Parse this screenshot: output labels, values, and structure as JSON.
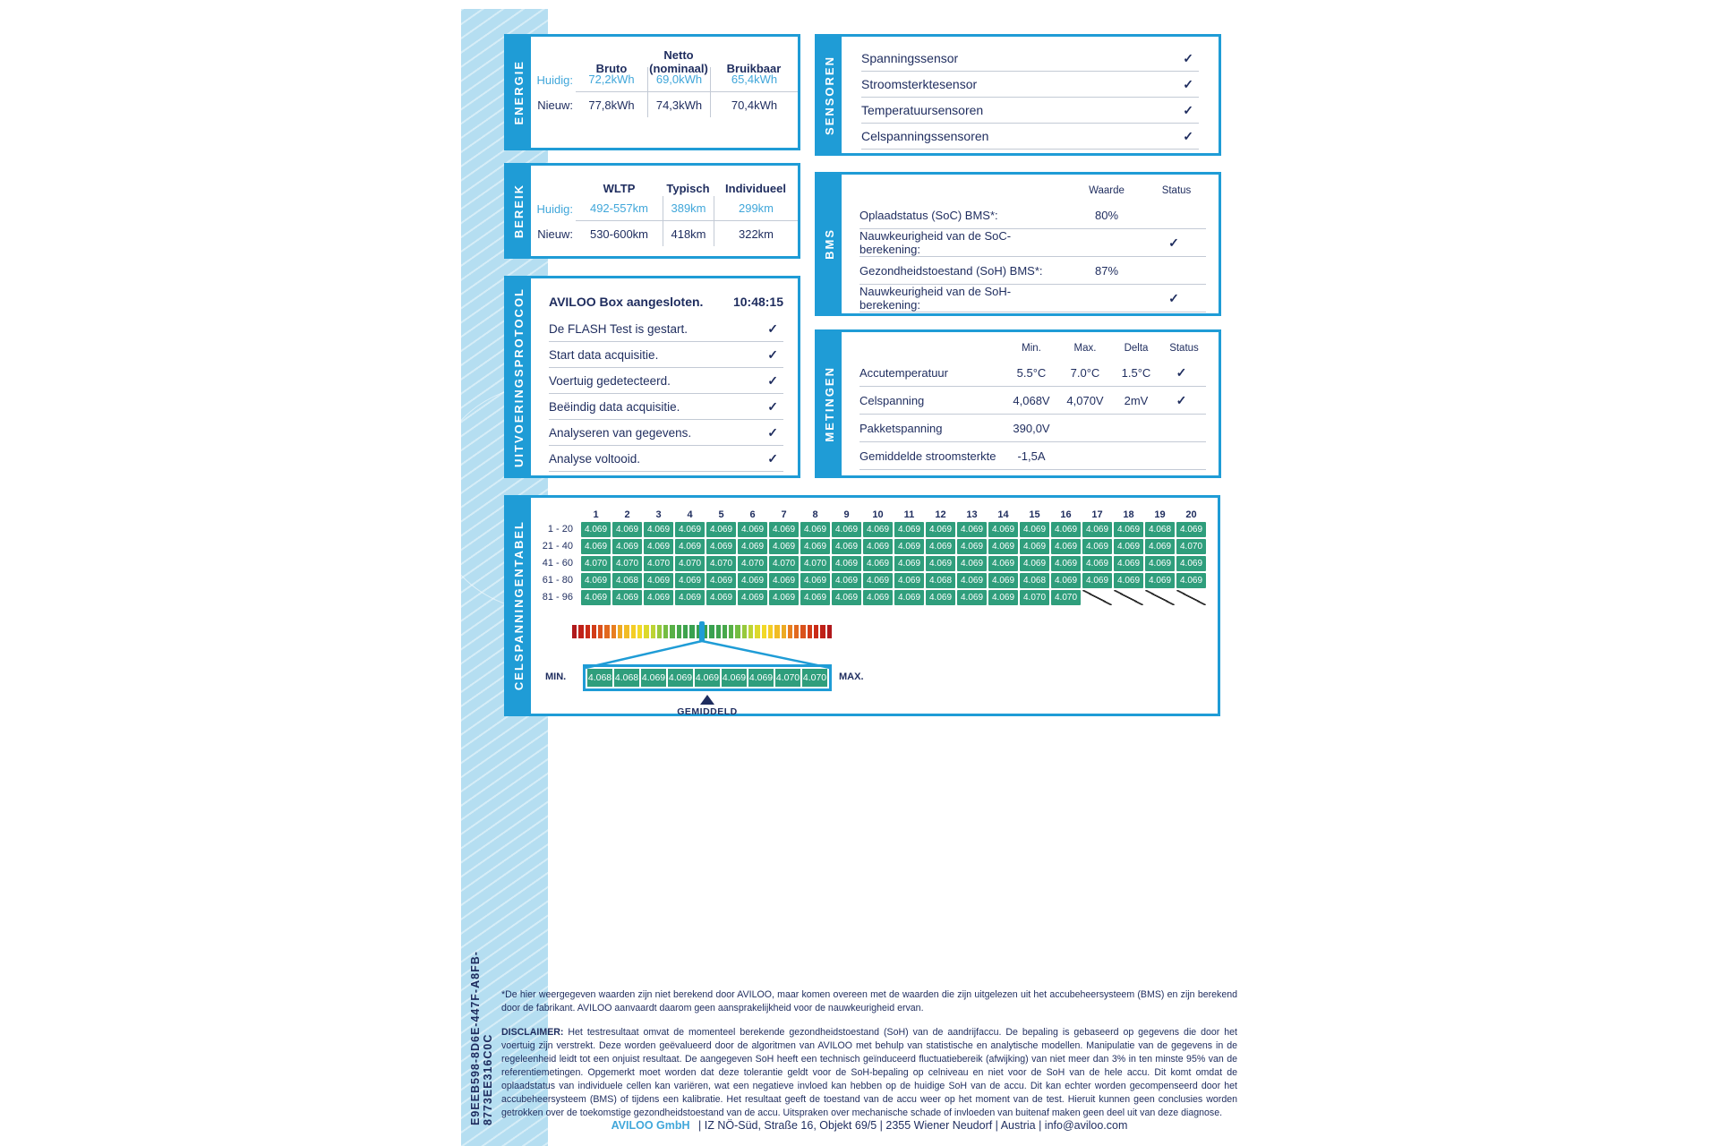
{
  "colors": {
    "accent": "#1f9cd6",
    "navy": "#1e2c5e",
    "highlight": "#41a7da",
    "green": "#2f9e7c",
    "band": "#b5def1",
    "divider": "#c3cad5"
  },
  "icons": {
    "check": "✓"
  },
  "vertical_id": "E9EEB598-8D6E-447F-A8FB-8773EE316C0C",
  "energie": {
    "title": "ENERGIE",
    "columns": [
      "Bruto",
      "Netto\n(nominaal)",
      "Bruikbaar"
    ],
    "rows": [
      {
        "label": "Huidig:",
        "values": [
          "72,2kWh",
          "69,0kWh",
          "65,4kWh"
        ],
        "highlight": true
      },
      {
        "label": "Nieuw:",
        "values": [
          "77,8kWh",
          "74,3kWh",
          "70,4kWh"
        ],
        "highlight": false
      }
    ]
  },
  "bereik": {
    "title": "BEREIK",
    "columns": [
      "WLTP",
      "Typisch",
      "Individueel"
    ],
    "rows": [
      {
        "label": "Huidig:",
        "values": [
          "492-557km",
          "389km",
          "299km"
        ],
        "highlight": true
      },
      {
        "label": "Nieuw:",
        "values": [
          "530-600km",
          "418km",
          "322km"
        ],
        "highlight": false
      }
    ]
  },
  "protocol": {
    "title": "UITVOERINGSPROTOCOL",
    "header": {
      "label": "AVILOO Box aangesloten.",
      "time": "10:48:15"
    },
    "items": [
      {
        "label": "De FLASH Test is gestart.",
        "check": true
      },
      {
        "label": "Start data acquisitie.",
        "check": true
      },
      {
        "label": "Voertuig gedetecteerd.",
        "check": true
      },
      {
        "label": "Beëindig data acquisitie.",
        "check": true
      },
      {
        "label": "Analyseren van gegevens.",
        "check": true
      },
      {
        "label": "Analyse voltooid.",
        "check": true
      }
    ]
  },
  "sensoren": {
    "title": "SENSOREN",
    "items": [
      {
        "label": "Spanningssensor",
        "check": true
      },
      {
        "label": "Stroomsterktesensor",
        "check": true
      },
      {
        "label": "Temperatuursensoren",
        "check": true
      },
      {
        "label": "Celspanningssensoren",
        "check": true
      }
    ]
  },
  "bms": {
    "title": "BMS",
    "headers": [
      "Waarde",
      "Status"
    ],
    "rows": [
      {
        "label": "Oplaadstatus (SoC) BMS*:",
        "waarde": "80%",
        "check": false
      },
      {
        "label": "Nauwkeurigheid van de SoC-berekening:",
        "waarde": "",
        "check": true
      },
      {
        "label": "Gezondheidstoestand (SoH) BMS*:",
        "waarde": "87%",
        "check": false
      },
      {
        "label": "Nauwkeurigheid van de SoH-berekening:",
        "waarde": "",
        "check": true
      }
    ]
  },
  "metingen": {
    "title": "METINGEN",
    "headers": [
      "Min.",
      "Max.",
      "Delta",
      "Status"
    ],
    "rows": [
      {
        "label": "Accutemperatuur",
        "min": "5.5°C",
        "max": "7.0°C",
        "delta": "1.5°C",
        "check": true
      },
      {
        "label": "Celspanning",
        "min": "4,068V",
        "max": "4,070V",
        "delta": "2mV",
        "check": true
      },
      {
        "label": "Pakketspanning",
        "min": "390,0V",
        "max": "",
        "delta": "",
        "check": false
      },
      {
        "label": "Gemiddelde stroomsterkte",
        "min": "-1,5A",
        "max": "",
        "delta": "",
        "check": false
      }
    ]
  },
  "celtabel": {
    "title": "CELSPANNINGENTABEL",
    "col_headers": [
      "1",
      "2",
      "3",
      "4",
      "5",
      "6",
      "7",
      "8",
      "9",
      "10",
      "11",
      "12",
      "13",
      "14",
      "15",
      "16",
      "17",
      "18",
      "19",
      "20"
    ],
    "rows": [
      {
        "label": "1 - 20",
        "values": [
          "4.069",
          "4.069",
          "4.069",
          "4.069",
          "4.069",
          "4.069",
          "4.069",
          "4.069",
          "4.069",
          "4.069",
          "4.069",
          "4.069",
          "4.069",
          "4.069",
          "4.069",
          "4.069",
          "4.069",
          "4.069",
          "4.068",
          "4.069"
        ]
      },
      {
        "label": "21 - 40",
        "values": [
          "4.069",
          "4.069",
          "4.069",
          "4.069",
          "4.069",
          "4.069",
          "4.069",
          "4.069",
          "4.069",
          "4.069",
          "4.069",
          "4.069",
          "4.069",
          "4.069",
          "4.069",
          "4.069",
          "4.069",
          "4.069",
          "4.069",
          "4.070"
        ]
      },
      {
        "label": "41 - 60",
        "values": [
          "4.070",
          "4.070",
          "4.070",
          "4.070",
          "4.070",
          "4.070",
          "4.070",
          "4.070",
          "4.069",
          "4.069",
          "4.069",
          "4.069",
          "4.069",
          "4.069",
          "4.069",
          "4.069",
          "4.069",
          "4.069",
          "4.069",
          "4.069"
        ]
      },
      {
        "label": "61 - 80",
        "values": [
          "4.069",
          "4.068",
          "4.069",
          "4.069",
          "4.069",
          "4.069",
          "4.069",
          "4.069",
          "4.069",
          "4.069",
          "4.069",
          "4.068",
          "4.069",
          "4.069",
          "4.068",
          "4.069",
          "4.069",
          "4.069",
          "4.069",
          "4.069"
        ]
      },
      {
        "label": "81 - 96",
        "values": [
          "4.069",
          "4.069",
          "4.069",
          "4.069",
          "4.069",
          "4.069",
          "4.069",
          "4.069",
          "4.069",
          "4.069",
          "4.069",
          "4.069",
          "4.069",
          "4.069",
          "4.070",
          "4.070",
          null,
          null,
          null,
          null
        ]
      }
    ],
    "legend": {
      "min_label": "MIN.",
      "max_label": "MAX.",
      "avg_label": "GEMIDDELD",
      "values": [
        "4.068",
        "4.068",
        "4.069",
        "4.069",
        "4.069",
        "4.069",
        "4.069",
        "4.070",
        "4.070"
      ]
    },
    "gradient": [
      "#b0191c",
      "#c02118",
      "#ca2b17",
      "#d23d19",
      "#da521c",
      "#e2681e",
      "#e87e20",
      "#edaa23",
      "#f1bc25",
      "#f4cd26",
      "#f2d928",
      "#ddd92c",
      "#bdd434",
      "#97c93c",
      "#74bd42",
      "#58b047",
      "#47a84b",
      "#3da34d",
      "#39a150",
      "#37a051",
      "#37a051",
      "#39a150",
      "#3da34d",
      "#47a84b",
      "#58b047",
      "#74bd42",
      "#97c93c",
      "#bdd434",
      "#ddd92c",
      "#f2d928",
      "#f4cd26",
      "#f1bc25",
      "#edaa23",
      "#e87e20",
      "#e2681e",
      "#da521c",
      "#d23d19",
      "#ca2b17",
      "#c02118",
      "#b0191c"
    ]
  },
  "footnote": "*De hier weergegeven waarden zijn niet berekend door AVILOO, maar komen overeen met de waarden die zijn uitgelezen uit het accubeheersysteem (BMS) en zijn berekend door de fabrikant. AVILOO aanvaardt daarom geen aansprakelijkheid voor de nauwkeurigheid ervan.",
  "disclaimer": {
    "label": "DISCLAIMER:",
    "text": " Het testresultaat omvat de momenteel berekende gezondheidstoestand (SoH) van de aandrijfaccu. De bepaling is gebaseerd op gegevens die door het voertuig zijn verstrekt. Deze worden geëvalueerd door de algoritmen van AVILOO met behulp van statistische en analytische modellen. Manipulatie van de gegevens in de regeleenheid leidt tot een onjuist resultaat. De aangegeven SoH heeft een technisch geïnduceerd fluctuatiebereik (afwijking) van niet meer dan 3% in ten minste 95% van de referentiemetingen. Opgemerkt moet worden dat deze tolerantie geldt voor de SoH-bepaling op celniveau en niet voor de SoH van de hele accu. Dit komt omdat de oplaadstatus van individuele cellen kan variëren, wat een negatieve invloed kan hebben op de huidige SoH van de accu. Dit kan echter worden gecompenseerd door het accubeheersysteem (BMS) of tijdens een kalibratie. Het resultaat geeft de toestand van de accu weer op het moment van de test. Hieruit kunnen geen conclusies worden getrokken over de toekomstige gezondheidstoestand van de accu. Uitspraken over mechanische schade of invloeden van buitenaf maken geen deel uit van deze diagnose."
  },
  "footer": {
    "company": "AVILOO GmbH",
    "details": "|  IZ NÖ-Süd, Straße 16, Objekt 69/5  |  2355 Wiener Neudorf  |  Austria  |  info@aviloo.com"
  }
}
